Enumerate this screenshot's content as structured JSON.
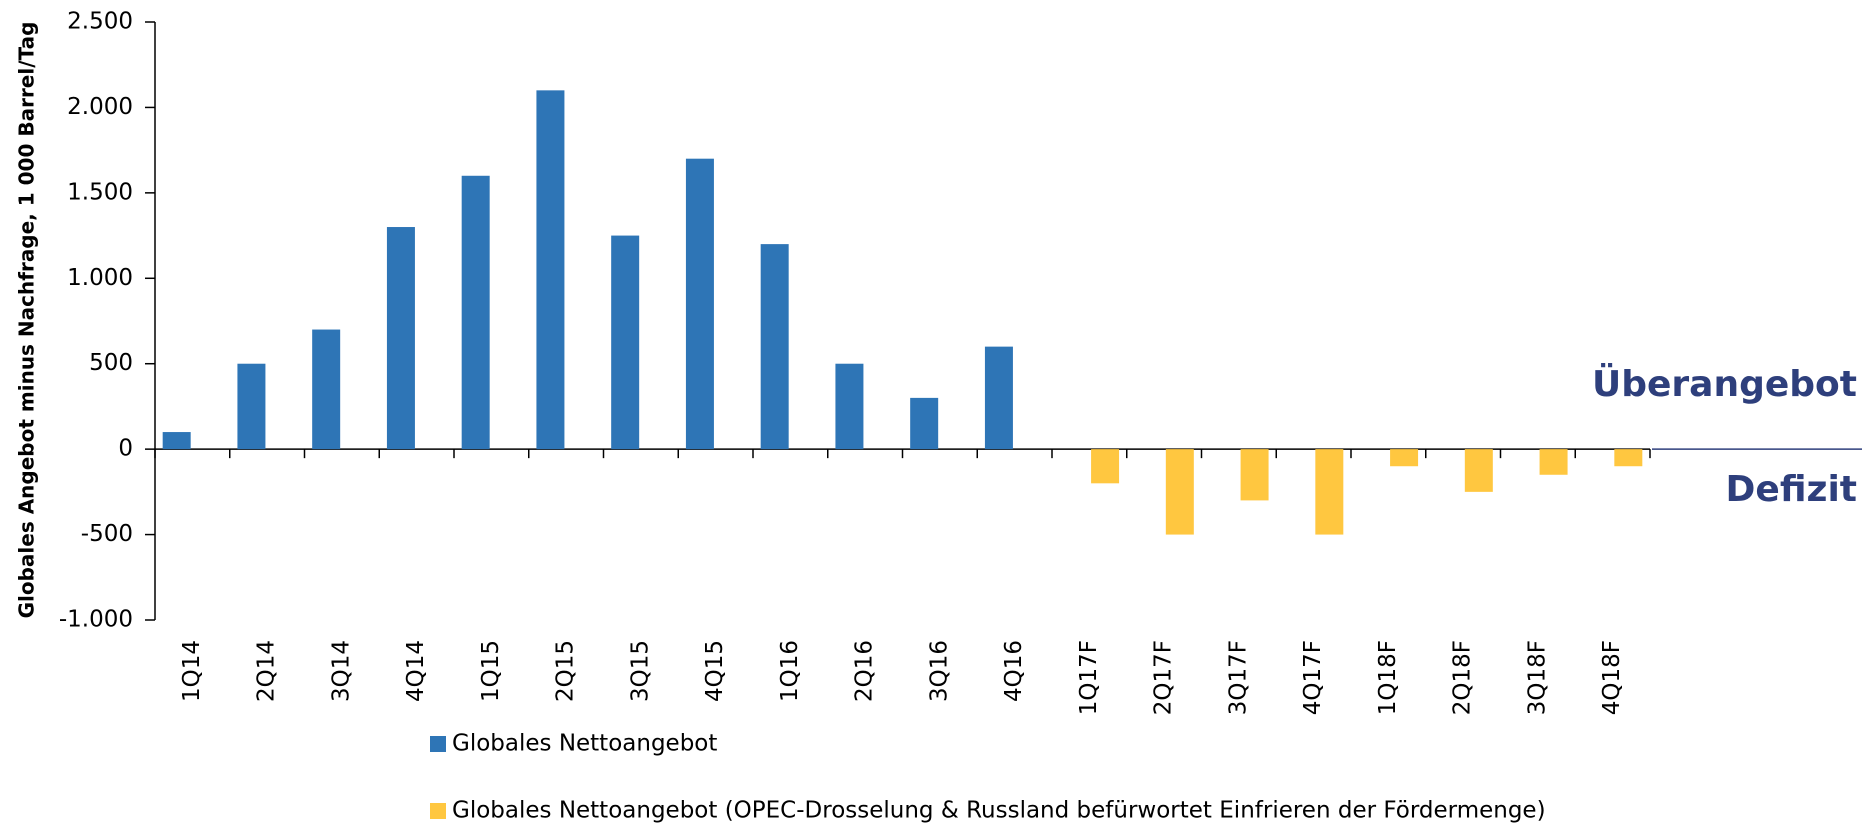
{
  "chart_data": {
    "type": "bar",
    "y_label": "Globales Angebot minus Nachfrage, 1 000 Barrel/Tag",
    "categories": [
      "1Q14",
      "2Q14",
      "3Q14",
      "4Q14",
      "1Q15",
      "2Q15",
      "3Q15",
      "4Q15",
      "1Q16",
      "2Q16",
      "3Q16",
      "4Q16",
      "1Q17F",
      "2Q17F",
      "3Q17F",
      "4Q17F",
      "1Q18F",
      "2Q18F",
      "3Q18F",
      "4Q18F"
    ],
    "series": [
      {
        "name": "Globales Nettoangebot",
        "color": "#2e75b6",
        "values": [
          100,
          500,
          700,
          1300,
          1600,
          2100,
          1250,
          1700,
          1200,
          500,
          300,
          600,
          null,
          null,
          null,
          null,
          null,
          null,
          null,
          null
        ]
      },
      {
        "name": "Globales Nettoangebot (OPEC-Drosselung & Russland befürwortet Einfrieren der Fördermenge)",
        "color": "#ffc740",
        "values": [
          null,
          null,
          null,
          null,
          null,
          null,
          null,
          null,
          null,
          null,
          null,
          null,
          -200,
          -500,
          -300,
          -500,
          -100,
          -250,
          -150,
          -100
        ]
      }
    ],
    "ylim": [
      -1000,
      2500
    ],
    "yticks": [
      {
        "value": -1000,
        "label": "-1.000"
      },
      -500,
      0,
      500,
      {
        "value": 1000,
        "label": "1.000"
      },
      {
        "value": 1500,
        "label": "1.500"
      },
      {
        "value": 2000,
        "label": "2.000"
      },
      {
        "value": 2500,
        "label": "2.500"
      }
    ],
    "annotations": [
      "Überangebot",
      "Defizit"
    ],
    "grid": false
  }
}
